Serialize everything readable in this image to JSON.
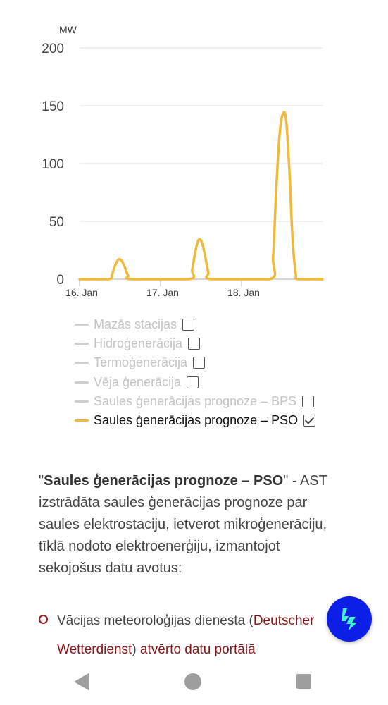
{
  "chart_data": {
    "type": "line",
    "title": "",
    "xlabel": "",
    "ylabel": "MW",
    "ylim": [
      0,
      200
    ],
    "yticks": [
      0,
      50,
      100,
      150,
      200
    ],
    "xlim": [
      0,
      3
    ],
    "xticks": [
      {
        "value": 0,
        "label": "16. Jan"
      },
      {
        "value": 1,
        "label": "17. Jan"
      },
      {
        "value": 2,
        "label": "18. Jan"
      }
    ],
    "grid": true,
    "series": [
      {
        "name": "Saules ģenerācijas prognoze – PSO",
        "color": "#f0b93a",
        "points": [
          [
            0.0,
            0
          ],
          [
            0.36,
            0
          ],
          [
            0.4,
            4
          ],
          [
            0.44,
            12
          ],
          [
            0.48,
            17
          ],
          [
            0.52,
            16
          ],
          [
            0.56,
            10
          ],
          [
            0.6,
            3
          ],
          [
            0.64,
            0
          ],
          [
            1.35,
            0
          ],
          [
            1.39,
            8
          ],
          [
            1.43,
            24
          ],
          [
            1.47,
            34
          ],
          [
            1.51,
            32
          ],
          [
            1.55,
            20
          ],
          [
            1.59,
            6
          ],
          [
            1.63,
            0
          ],
          [
            2.35,
            0
          ],
          [
            2.39,
            20
          ],
          [
            2.43,
            80
          ],
          [
            2.47,
            125
          ],
          [
            2.51,
            143
          ],
          [
            2.55,
            138
          ],
          [
            2.59,
            95
          ],
          [
            2.63,
            35
          ],
          [
            2.67,
            4
          ],
          [
            2.7,
            0
          ],
          [
            3.0,
            0
          ]
        ]
      }
    ]
  },
  "legend": {
    "items": [
      {
        "label": "Mazās stacijas",
        "active": false
      },
      {
        "label": "Hidroģenerācija",
        "active": false
      },
      {
        "label": "Termoģenerācija",
        "active": false
      },
      {
        "label": "Vēja ģenerācija",
        "active": false
      },
      {
        "label": "Saules ģenerācijas prognoze – BPS",
        "active": false
      },
      {
        "label": "Saules ģenerācijas prognoze – PSO",
        "active": true
      }
    ]
  },
  "description": {
    "quote_open": "\"",
    "bold_title": "Saules ģenerācijas prognoze – PSO",
    "rest": "\" - AST izstrādāta saules ģenerācijas prognoze par saules elektrostaciju, ietverot mikroģenerāciju, tīklā nodoto elektroenerģiju, izmantojot sekojošus datu avotus:"
  },
  "bullet": {
    "text": "Vācijas meteoroloģijas dienesta (",
    "link1": "Deutscher Wetterdienst",
    "mid": ") ",
    "link2": "atvērto datu portālā"
  },
  "colors": {
    "series": "#f0b93a",
    "fab": "#0b1fe6",
    "fab_icon": "#3ff7d4",
    "link": "#8b1414"
  },
  "icons": {
    "fab": "lightning-bolt-icon",
    "nav_back": "back-triangle-icon",
    "nav_home": "home-circle-icon",
    "nav_recent": "recent-square-icon"
  }
}
